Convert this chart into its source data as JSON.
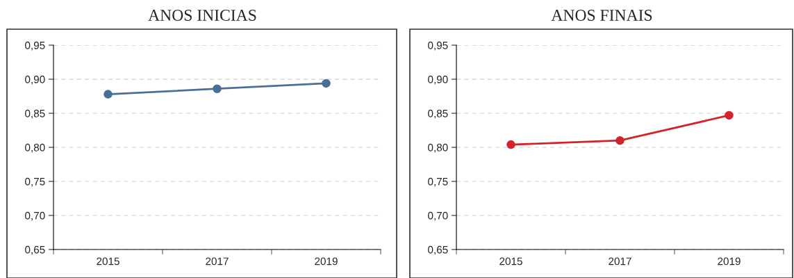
{
  "chart_data": [
    {
      "type": "line",
      "title": "ANOS INICIAS",
      "categories": [
        "2015",
        "2017",
        "2019"
      ],
      "series": [
        {
          "color": "#4a6f96",
          "values": [
            0.878,
            0.886,
            0.894
          ]
        }
      ],
      "ylim": [
        0.65,
        0.95
      ],
      "yticks": [
        {
          "value": 0.65,
          "label": "0,65"
        },
        {
          "value": 0.7,
          "label": "0,70"
        },
        {
          "value": 0.75,
          "label": "0,75"
        },
        {
          "value": 0.8,
          "label": "0,80"
        },
        {
          "value": 0.85,
          "label": "0,85"
        },
        {
          "value": 0.9,
          "label": "0,90"
        },
        {
          "value": 0.95,
          "label": "0,95"
        }
      ],
      "grid": "y",
      "marker": "circle",
      "line_style": "solid"
    },
    {
      "type": "line",
      "title": "ANOS FINAIS",
      "categories": [
        "2015",
        "2017",
        "2019"
      ],
      "series": [
        {
          "color": "#d0262b",
          "values": [
            0.804,
            0.81,
            0.847
          ]
        }
      ],
      "ylim": [
        0.65,
        0.95
      ],
      "yticks": [
        {
          "value": 0.65,
          "label": "0,65"
        },
        {
          "value": 0.7,
          "label": "0,70"
        },
        {
          "value": 0.75,
          "label": "0,75"
        },
        {
          "value": 0.8,
          "label": "0,80"
        },
        {
          "value": 0.85,
          "label": "0,85"
        },
        {
          "value": 0.9,
          "label": "0,90"
        },
        {
          "value": 0.95,
          "label": "0,95"
        }
      ],
      "grid": "y",
      "marker": "circle",
      "line_style": "solid"
    }
  ]
}
